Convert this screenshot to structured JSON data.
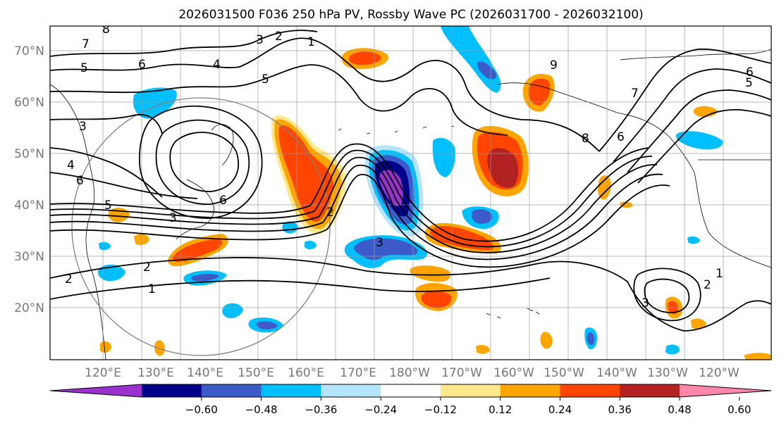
{
  "title": "2026031500 F036 250 hPa PV, Rossby Wave PC (2026031700 - 2026032100)",
  "lat_labels": [
    "70°N",
    "60°N",
    "50°N",
    "40°N",
    "30°N",
    "20°N"
  ],
  "lon_labels": [
    "120°E",
    "130°E",
    "140°E",
    "150°E",
    "160°E",
    "170°E",
    "180°W",
    "170°W",
    "160°W",
    "150°W",
    "140°W",
    "130°W",
    "120°W"
  ],
  "colorbar": {
    "ticks": [
      "−0.60",
      "−0.48",
      "−0.36",
      "−0.24",
      "−0.12",
      "0.12",
      "0.24",
      "0.36",
      "0.48",
      "0.60"
    ],
    "colors": [
      "#9932cc",
      "#00008b",
      "#3c5ac8",
      "#00bfff",
      "#b4e4ff",
      "#ffffff",
      "#ffe88c",
      "#ffa500",
      "#ff4500",
      "#b22222",
      "#ff88aa"
    ]
  },
  "contour_labels": [
    {
      "text": "8"
    },
    {
      "text": "7"
    },
    {
      "text": "6"
    },
    {
      "text": "5"
    },
    {
      "text": "5"
    },
    {
      "text": "4"
    },
    {
      "text": "6"
    },
    {
      "text": "5"
    },
    {
      "text": "6"
    },
    {
      "text": "3"
    },
    {
      "text": "2"
    },
    {
      "text": "1"
    },
    {
      "text": "2"
    },
    {
      "text": "3"
    },
    {
      "text": "8"
    },
    {
      "text": "6"
    },
    {
      "text": "9"
    },
    {
      "text": "7"
    },
    {
      "text": "5"
    },
    {
      "text": "6"
    },
    {
      "text": "1"
    },
    {
      "text": "2"
    },
    {
      "text": "3"
    },
    {
      "text": "3"
    },
    {
      "text": "2"
    },
    {
      "text": "3"
    },
    {
      "text": "4"
    },
    {
      "text": "1"
    },
    {
      "text": "2"
    }
  ]
}
